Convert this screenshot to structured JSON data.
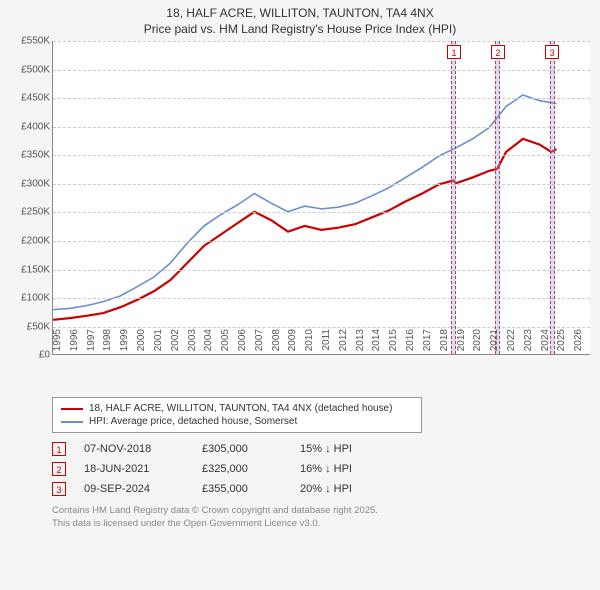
{
  "title": {
    "line1": "18, HALF ACRE, WILLITON, TAUNTON, TA4 4NX",
    "line2": "Price paid vs. HM Land Registry's House Price Index (HPI)"
  },
  "chart": {
    "type": "line",
    "x_axis": {
      "min": 1995,
      "max": 2027,
      "ticks": [
        1995,
        1996,
        1997,
        1998,
        1999,
        2000,
        2001,
        2002,
        2003,
        2004,
        2005,
        2006,
        2007,
        2008,
        2009,
        2010,
        2011,
        2012,
        2013,
        2014,
        2015,
        2016,
        2017,
        2018,
        2019,
        2020,
        2021,
        2022,
        2023,
        2024,
        2025,
        2026
      ],
      "fontsize": 10
    },
    "y_axis": {
      "min": 0,
      "max": 550000,
      "ticks": [
        0,
        50000,
        100000,
        150000,
        200000,
        250000,
        300000,
        350000,
        400000,
        450000,
        500000,
        550000
      ],
      "labels": [
        "£0",
        "£50K",
        "£100K",
        "£150K",
        "£200K",
        "£250K",
        "£300K",
        "£350K",
        "£400K",
        "£450K",
        "£500K",
        "£550K"
      ],
      "fontsize": 10
    },
    "background_color": "#ffffff",
    "grid_color": "#cccccc",
    "series": [
      {
        "name": "price_paid",
        "color": "#cc0000",
        "width": 2.2,
        "data": [
          [
            1995,
            60000
          ],
          [
            1996,
            63000
          ],
          [
            1997,
            67000
          ],
          [
            1998,
            72000
          ],
          [
            1999,
            82000
          ],
          [
            2000,
            95000
          ],
          [
            2001,
            110000
          ],
          [
            2002,
            130000
          ],
          [
            2003,
            160000
          ],
          [
            2004,
            190000
          ],
          [
            2005,
            210000
          ],
          [
            2006,
            230000
          ],
          [
            2007,
            250000
          ],
          [
            2008,
            235000
          ],
          [
            2009,
            215000
          ],
          [
            2010,
            225000
          ],
          [
            2011,
            218000
          ],
          [
            2012,
            222000
          ],
          [
            2013,
            228000
          ],
          [
            2014,
            240000
          ],
          [
            2015,
            252000
          ],
          [
            2016,
            268000
          ],
          [
            2017,
            282000
          ],
          [
            2018,
            298000
          ],
          [
            2018.85,
            305000
          ],
          [
            2019,
            300000
          ],
          [
            2020,
            310000
          ],
          [
            2021,
            322000
          ],
          [
            2021.46,
            325000
          ],
          [
            2022,
            355000
          ],
          [
            2023,
            378000
          ],
          [
            2024,
            368000
          ],
          [
            2024.69,
            355000
          ],
          [
            2025,
            360000
          ]
        ]
      },
      {
        "name": "hpi",
        "color": "#6a8fd0",
        "width": 1.6,
        "data": [
          [
            1995,
            78000
          ],
          [
            1996,
            80000
          ],
          [
            1997,
            85000
          ],
          [
            1998,
            92000
          ],
          [
            1999,
            102000
          ],
          [
            2000,
            118000
          ],
          [
            2001,
            135000
          ],
          [
            2002,
            160000
          ],
          [
            2003,
            195000
          ],
          [
            2004,
            225000
          ],
          [
            2005,
            245000
          ],
          [
            2006,
            262000
          ],
          [
            2007,
            282000
          ],
          [
            2008,
            265000
          ],
          [
            2009,
            250000
          ],
          [
            2010,
            260000
          ],
          [
            2011,
            255000
          ],
          [
            2012,
            258000
          ],
          [
            2013,
            265000
          ],
          [
            2014,
            278000
          ],
          [
            2015,
            292000
          ],
          [
            2016,
            310000
          ],
          [
            2017,
            328000
          ],
          [
            2018,
            348000
          ],
          [
            2019,
            362000
          ],
          [
            2020,
            378000
          ],
          [
            2021,
            398000
          ],
          [
            2022,
            435000
          ],
          [
            2023,
            455000
          ],
          [
            2024,
            445000
          ],
          [
            2025,
            440000
          ]
        ]
      }
    ],
    "event_bands": [
      {
        "x": 2018.85,
        "width_years": 0.3
      },
      {
        "x": 2021.46,
        "width_years": 0.3
      },
      {
        "x": 2024.69,
        "width_years": 0.3
      }
    ],
    "event_markers": [
      {
        "label": "1",
        "x": 2018.85
      },
      {
        "label": "2",
        "x": 2021.46
      },
      {
        "label": "3",
        "x": 2024.69
      }
    ]
  },
  "legend": {
    "items": [
      {
        "color": "#cc0000",
        "label": "18, HALF ACRE, WILLITON, TAUNTON, TA4 4NX (detached house)"
      },
      {
        "color": "#6a8fd0",
        "label": "HPI: Average price, detached house, Somerset"
      }
    ]
  },
  "events": [
    {
      "num": "1",
      "date": "07-NOV-2018",
      "price": "£305,000",
      "delta": "15% ↓ HPI"
    },
    {
      "num": "2",
      "date": "18-JUN-2021",
      "price": "£325,000",
      "delta": "16% ↓ HPI"
    },
    {
      "num": "3",
      "date": "09-SEP-2024",
      "price": "£355,000",
      "delta": "20% ↓ HPI"
    }
  ],
  "footnote": {
    "line1": "Contains HM Land Registry data © Crown copyright and database right 2025.",
    "line2": "This data is licensed under the Open Government Licence v3.0."
  }
}
